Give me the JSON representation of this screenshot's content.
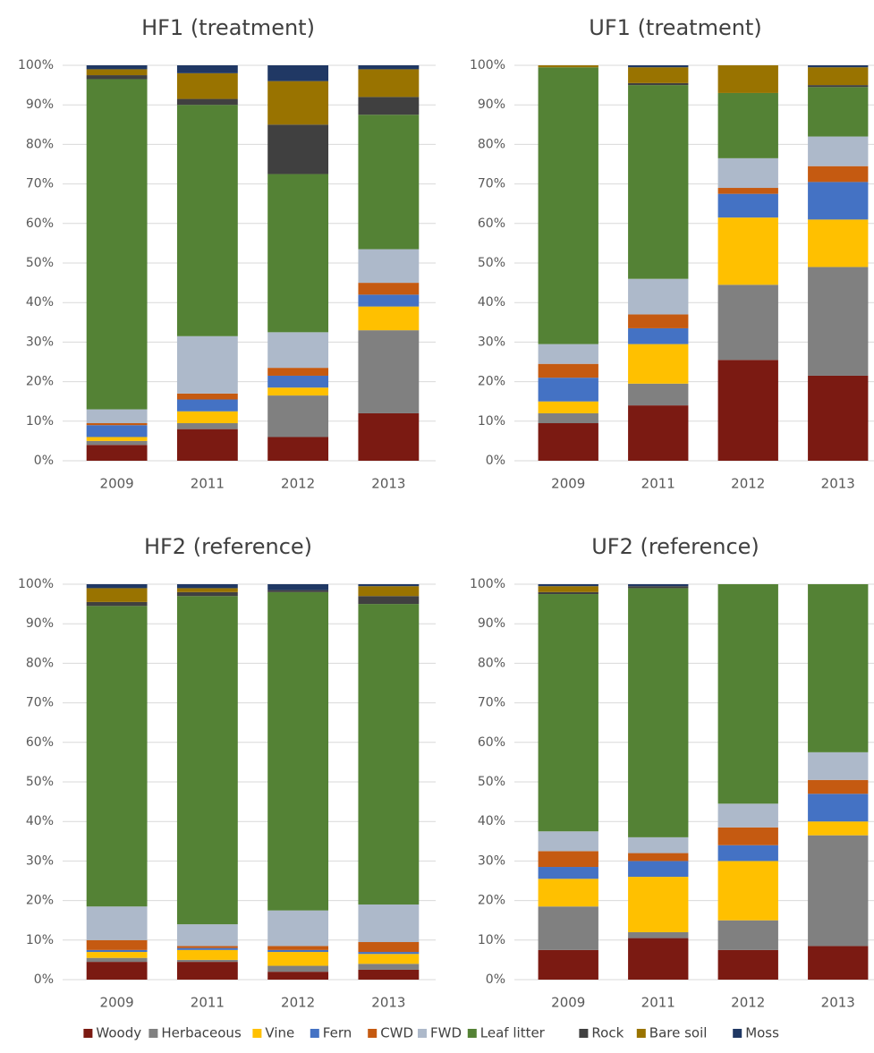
{
  "chart_data": [
    {
      "type": "bar",
      "stacked": true,
      "title": "HF1 (treatment)",
      "categories": [
        "2009",
        "2011",
        "2012",
        "2013"
      ],
      "series": [
        {
          "values": [
            4,
            8,
            6,
            12
          ]
        },
        {
          "values": [
            1,
            1.5,
            10.5,
            21
          ]
        },
        {
          "values": [
            1,
            3,
            2,
            6
          ]
        },
        {
          "values": [
            3,
            3,
            3,
            3
          ]
        },
        {
          "values": [
            0.5,
            1.5,
            2,
            3
          ]
        },
        {
          "values": [
            3.5,
            14.5,
            9,
            8.5
          ]
        },
        {
          "values": [
            83.5,
            58.5,
            40,
            34
          ]
        },
        {
          "values": [
            1,
            1.5,
            12.5,
            4.5
          ]
        },
        {
          "values": [
            1.5,
            6.5,
            11,
            7
          ]
        },
        {
          "values": [
            1,
            2,
            4,
            1
          ]
        }
      ],
      "ylim": [
        0,
        100
      ],
      "yticks": [
        {
          "value": 0,
          "label": "0%"
        },
        {
          "value": 10,
          "label": "10%"
        },
        {
          "value": 20,
          "label": "20%"
        },
        {
          "value": 30,
          "label": "30%"
        },
        {
          "value": 40,
          "label": "40%"
        },
        {
          "value": 50,
          "label": "50%"
        },
        {
          "value": 60,
          "label": "60%"
        },
        {
          "value": 70,
          "label": "70%"
        },
        {
          "value": 80,
          "label": "80%"
        },
        {
          "value": 90,
          "label": "90%"
        },
        {
          "value": 100,
          "label": "100%"
        }
      ],
      "grid": true
    },
    {
      "type": "bar",
      "stacked": true,
      "title": "UF1 (treatment)",
      "categories": [
        "2009",
        "2011",
        "2012",
        "2013"
      ],
      "series": [
        {
          "values": [
            9.5,
            14,
            25.5,
            21.5
          ]
        },
        {
          "values": [
            2.5,
            5.5,
            19,
            27.5
          ]
        },
        {
          "values": [
            3,
            10,
            17,
            12
          ]
        },
        {
          "values": [
            6,
            4,
            6,
            9.5
          ]
        },
        {
          "values": [
            3.5,
            3.5,
            1.5,
            4
          ]
        },
        {
          "values": [
            5,
            9,
            7.5,
            7.5
          ]
        },
        {
          "values": [
            70,
            49,
            16.5,
            12.5
          ]
        },
        {
          "values": [
            0,
            0.5,
            0,
            0.5
          ]
        },
        {
          "values": [
            0.5,
            4,
            7,
            4.5
          ]
        },
        {
          "values": [
            0,
            0.5,
            0,
            0.5
          ]
        }
      ],
      "ylim": [
        0,
        100
      ],
      "yticks": [
        {
          "value": 0,
          "label": "0%"
        },
        {
          "value": 10,
          "label": "10%"
        },
        {
          "value": 20,
          "label": "20%"
        },
        {
          "value": 30,
          "label": "30%"
        },
        {
          "value": 40,
          "label": "40%"
        },
        {
          "value": 50,
          "label": "50%"
        },
        {
          "value": 60,
          "label": "60%"
        },
        {
          "value": 70,
          "label": "70%"
        },
        {
          "value": 80,
          "label": "80%"
        },
        {
          "value": 90,
          "label": "90%"
        },
        {
          "value": 100,
          "label": "100%"
        }
      ],
      "grid": true
    },
    {
      "type": "bar",
      "stacked": true,
      "title": "HF2 (reference)",
      "categories": [
        "2009",
        "2011",
        "2012",
        "2013"
      ],
      "series": [
        {
          "values": [
            4.5,
            4.5,
            2,
            2.5
          ]
        },
        {
          "values": [
            1,
            0.5,
            1.5,
            1.5
          ]
        },
        {
          "values": [
            1.5,
            2.5,
            3.5,
            2.5
          ]
        },
        {
          "values": [
            0.5,
            0.5,
            0.5,
            0.5
          ]
        },
        {
          "values": [
            2.5,
            0.5,
            1,
            2.5
          ]
        },
        {
          "values": [
            8.5,
            5.5,
            9,
            9.5
          ]
        },
        {
          "values": [
            76,
            83,
            80.5,
            76
          ]
        },
        {
          "values": [
            1,
            1,
            0.5,
            2
          ]
        },
        {
          "values": [
            3.5,
            1,
            0,
            2.5
          ]
        },
        {
          "values": [
            1,
            1,
            1.5,
            0.5
          ]
        }
      ],
      "ylim": [
        0,
        100
      ],
      "yticks": [
        {
          "value": 0,
          "label": "0%"
        },
        {
          "value": 10,
          "label": "10%"
        },
        {
          "value": 20,
          "label": "20%"
        },
        {
          "value": 30,
          "label": "30%"
        },
        {
          "value": 40,
          "label": "40%"
        },
        {
          "value": 50,
          "label": "50%"
        },
        {
          "value": 60,
          "label": "60%"
        },
        {
          "value": 70,
          "label": "70%"
        },
        {
          "value": 80,
          "label": "80%"
        },
        {
          "value": 90,
          "label": "90%"
        },
        {
          "value": 100,
          "label": "100%"
        }
      ],
      "grid": true
    },
    {
      "type": "bar",
      "stacked": true,
      "title": "UF2 (reference)",
      "categories": [
        "2009",
        "2011",
        "2012",
        "2013"
      ],
      "series": [
        {
          "values": [
            7.5,
            10.5,
            7.5,
            8.5
          ]
        },
        {
          "values": [
            11,
            1.5,
            7.5,
            28
          ]
        },
        {
          "values": [
            7,
            14,
            15,
            3.5
          ]
        },
        {
          "values": [
            3,
            4,
            4,
            7
          ]
        },
        {
          "values": [
            4,
            2,
            4.5,
            3.5
          ]
        },
        {
          "values": [
            5,
            4,
            6,
            7
          ]
        },
        {
          "values": [
            60,
            63,
            55.5,
            42.5
          ]
        },
        {
          "values": [
            0.5,
            0.5,
            0,
            0
          ]
        },
        {
          "values": [
            1.5,
            0,
            0,
            0
          ]
        },
        {
          "values": [
            0.5,
            0.5,
            0,
            0
          ]
        }
      ],
      "ylim": [
        0,
        100
      ],
      "yticks": [
        {
          "value": 0,
          "label": "0%"
        },
        {
          "value": 10,
          "label": "10%"
        },
        {
          "value": 20,
          "label": "20%"
        },
        {
          "value": 30,
          "label": "30%"
        },
        {
          "value": 40,
          "label": "40%"
        },
        {
          "value": 50,
          "label": "50%"
        },
        {
          "value": 60,
          "label": "60%"
        },
        {
          "value": 70,
          "label": "70%"
        },
        {
          "value": 80,
          "label": "80%"
        },
        {
          "value": 90,
          "label": "90%"
        },
        {
          "value": 100,
          "label": "100%"
        }
      ],
      "grid": true
    }
  ],
  "legend": {
    "position": "bottom",
    "series": [
      {
        "name": "Woody",
        "color": "#7b1a12"
      },
      {
        "name": "Herbaceous",
        "color": "#808080"
      },
      {
        "name": "Vine",
        "color": "#ffc000"
      },
      {
        "name": "Fern",
        "color": "#4472c4"
      },
      {
        "name": "CWD",
        "color": "#c55a11"
      },
      {
        "name": "FWD",
        "color": "#adb9ca"
      },
      {
        "name": "Leaf litter",
        "color": "#548235"
      },
      {
        "name": "Rock",
        "color": "#404040"
      },
      {
        "name": "Bare soil",
        "color": "#997300"
      },
      {
        "name": "Moss",
        "color": "#203864"
      }
    ]
  }
}
